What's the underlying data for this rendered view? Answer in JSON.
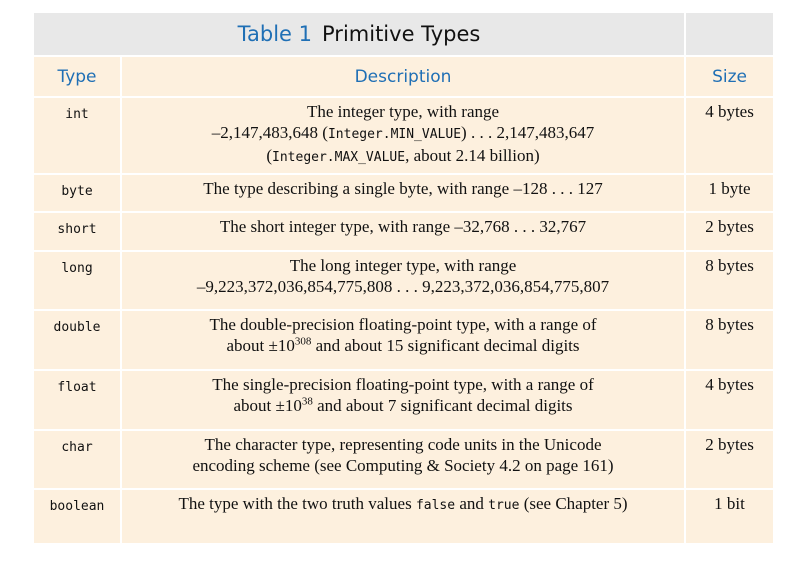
{
  "table": {
    "title_number": "Table 1",
    "title_text": "Primitive Types",
    "headers": {
      "type": "Type",
      "description": "Description",
      "size": "Size"
    },
    "rows": [
      {
        "type": "int",
        "line1": "The integer type, with range",
        "line2_a": "–2,147,483,648 (",
        "line2_code1": "Integer.MIN_VALUE",
        "line2_b": ") . . . 2,147,483,647",
        "line3_a": "(",
        "line3_code1": "Integer.MAX_VALUE",
        "line3_b": ", about 2.14 billion)",
        "size": "4 bytes"
      },
      {
        "type": "byte",
        "desc": "The type describing a single byte, with range –128 . . . 127",
        "size": "1 byte"
      },
      {
        "type": "short",
        "desc": "The short integer type, with range –32,768 . . . 32,767",
        "size": "2 bytes"
      },
      {
        "type": "long",
        "line1": "The long integer type, with range",
        "line2": "–9,223,372,036,854,775,808 . . . 9,223,372,036,854,775,807",
        "size": "8 bytes"
      },
      {
        "type": "double",
        "line1": "The double-precision floating-point type, with a range of",
        "line2_a": "about ±10",
        "sup": "308",
        "line2_b": " and about 15 significant decimal digits",
        "size": "8 bytes"
      },
      {
        "type": "float",
        "line1": "The single-precision floating-point type, with a range of",
        "line2_a": "about ±10",
        "sup": "38",
        "line2_b": " and about 7 significant decimal digits",
        "size": "4 bytes"
      },
      {
        "type": "char",
        "line1": "The character type, representing code units in the Unicode",
        "line2": "encoding scheme (see Computing & Society 4.2 on page 161)",
        "size": "2 bytes"
      },
      {
        "type": "boolean",
        "desc_a": "The type with the two truth values ",
        "code1": "false",
        "desc_b": " and ",
        "code2": "true",
        "desc_c": " (see Chapter 5)",
        "size": "1 bit"
      }
    ]
  }
}
